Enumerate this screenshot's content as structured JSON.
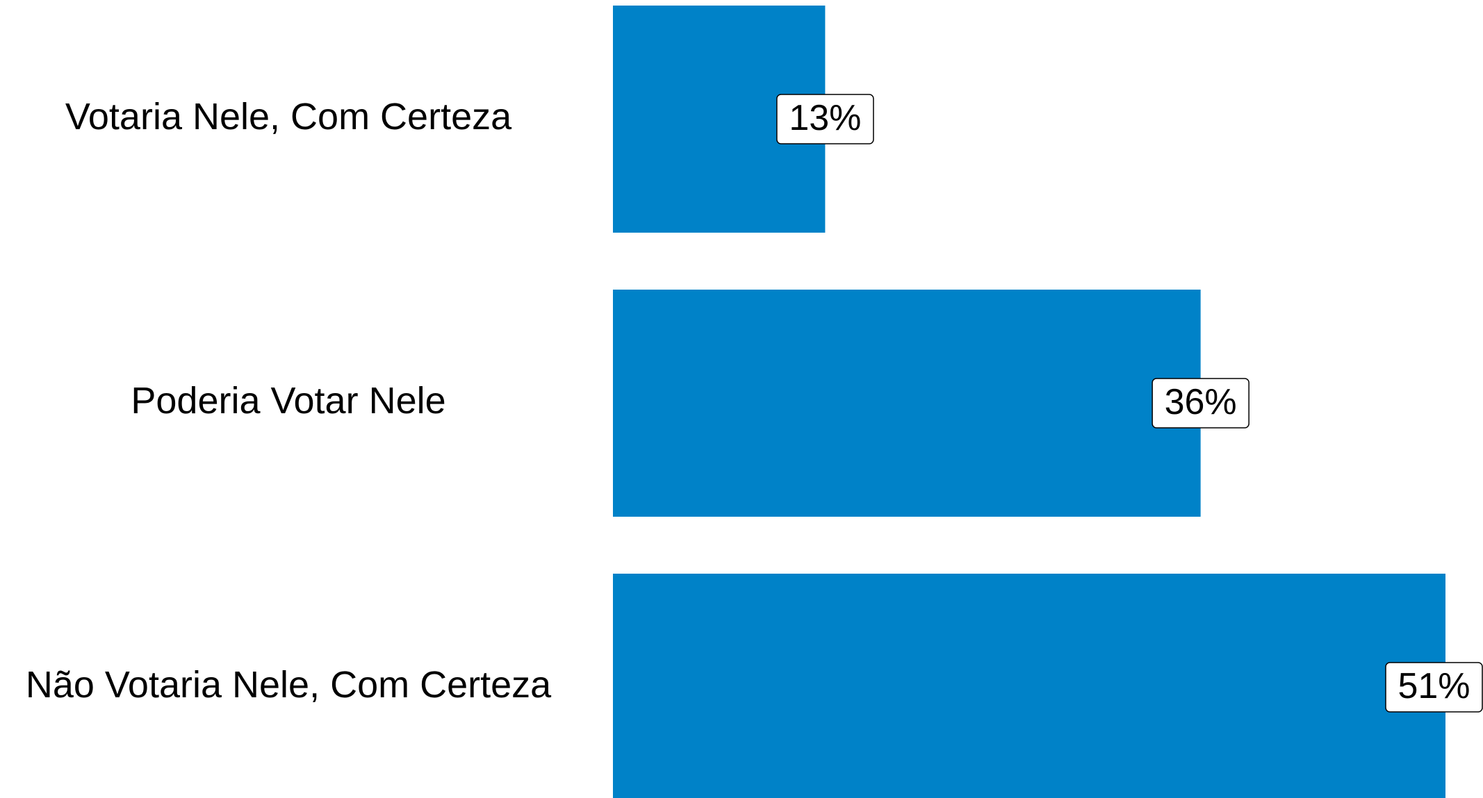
{
  "chart_data": {
    "type": "hbar",
    "categories": [
      "Votaria Nele, Com Certeza",
      "Poderia Votar Nele",
      "Não Votaria Nele, Com Certeza"
    ],
    "values": [
      13,
      36,
      51
    ],
    "value_labels": [
      "13%",
      "36%",
      "51%"
    ],
    "color": "#0082c8"
  }
}
